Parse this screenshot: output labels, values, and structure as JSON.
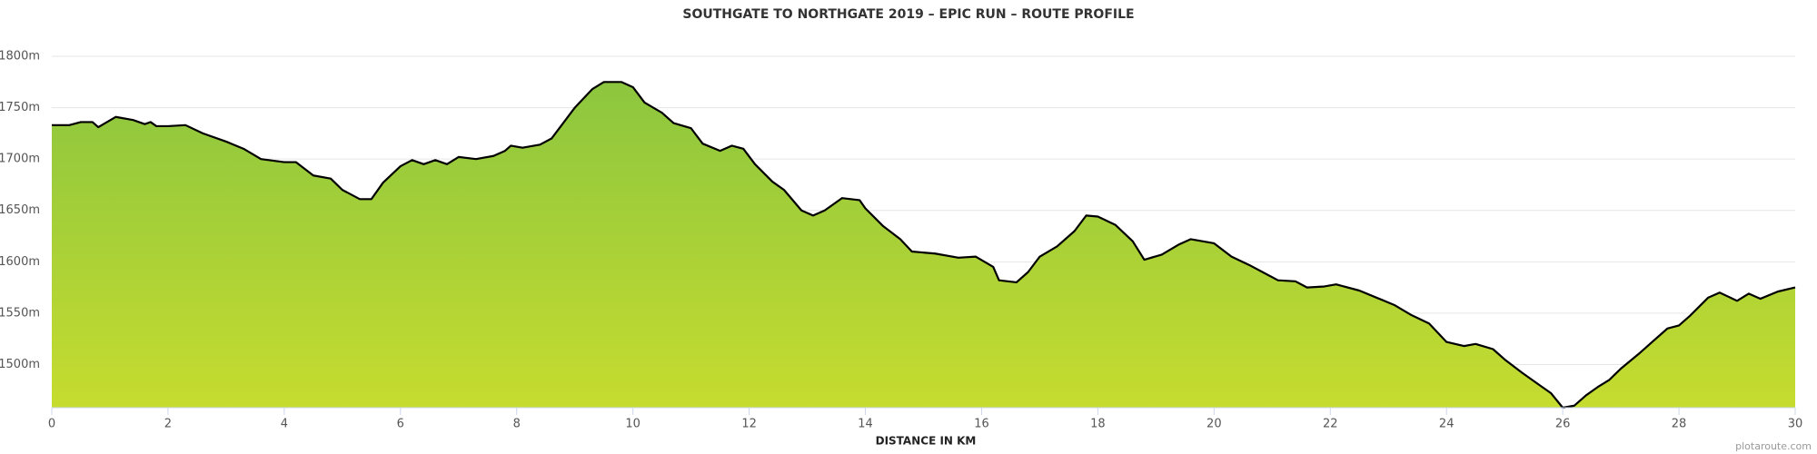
{
  "chart_data": {
    "type": "area",
    "title": "SOUTHGATE TO NORTHGATE 2019 – EPIC RUN – ROUTE PROFILE",
    "x_label": "DISTANCE IN KM",
    "source": "plotaroute.com",
    "x": [
      0,
      0.3,
      0.5,
      0.7,
      0.8,
      1.1,
      1.4,
      1.6,
      1.7,
      1.8,
      2.0,
      2.3,
      2.6,
      3.0,
      3.3,
      3.6,
      4.0,
      4.2,
      4.5,
      4.8,
      5.0,
      5.3,
      5.5,
      5.7,
      6.0,
      6.2,
      6.4,
      6.6,
      6.8,
      7.0,
      7.3,
      7.6,
      7.8,
      7.9,
      8.1,
      8.4,
      8.6,
      8.8,
      9.0,
      9.3,
      9.5,
      9.8,
      10.0,
      10.2,
      10.5,
      10.7,
      11.0,
      11.2,
      11.5,
      11.7,
      11.9,
      12.1,
      12.4,
      12.6,
      12.9,
      13.1,
      13.3,
      13.6,
      13.9,
      14.0,
      14.3,
      14.6,
      14.8,
      15.2,
      15.6,
      15.9,
      16.2,
      16.3,
      16.6,
      16.8,
      17.0,
      17.3,
      17.6,
      17.8,
      18.0,
      18.3,
      18.6,
      18.8,
      19.1,
      19.4,
      19.6,
      20.0,
      20.3,
      20.6,
      20.9,
      21.1,
      21.4,
      21.6,
      21.9,
      22.1,
      22.5,
      22.8,
      23.1,
      23.4,
      23.7,
      24.0,
      24.3,
      24.5,
      24.8,
      25.0,
      25.3,
      25.6,
      25.8,
      26.0,
      26.2,
      26.4,
      26.6,
      26.8,
      27.0,
      27.3,
      27.5,
      27.8,
      28.0,
      28.2,
      28.5,
      28.7,
      29.0,
      29.2,
      29.4,
      29.7,
      30.0
    ],
    "values": [
      1733,
      1733,
      1736,
      1736,
      1731,
      1741,
      1738,
      1734,
      1736,
      1732,
      1732,
      1733,
      1725,
      1717,
      1710,
      1700,
      1697,
      1697,
      1684,
      1681,
      1670,
      1661,
      1661,
      1677,
      1693,
      1699,
      1695,
      1699,
      1695,
      1702,
      1700,
      1703,
      1708,
      1713,
      1711,
      1714,
      1720,
      1735,
      1750,
      1768,
      1775,
      1775,
      1770,
      1755,
      1745,
      1735,
      1730,
      1715,
      1708,
      1713,
      1710,
      1695,
      1678,
      1670,
      1650,
      1645,
      1650,
      1662,
      1660,
      1652,
      1635,
      1622,
      1610,
      1608,
      1604,
      1605,
      1595,
      1582,
      1580,
      1590,
      1605,
      1615,
      1630,
      1645,
      1644,
      1636,
      1620,
      1602,
      1607,
      1617,
      1622,
      1618,
      1605,
      1597,
      1588,
      1582,
      1581,
      1575,
      1576,
      1578,
      1572,
      1565,
      1558,
      1548,
      1540,
      1522,
      1518,
      1520,
      1515,
      1505,
      1492,
      1480,
      1472,
      1458,
      1460,
      1470,
      1478,
      1485,
      1496,
      1510,
      1520,
      1535,
      1538,
      1548,
      1565,
      1570,
      1562,
      1569,
      1564,
      1571,
      1575
    ],
    "xlim": [
      0,
      30
    ],
    "xticks": [
      0,
      2,
      4,
      6,
      8,
      10,
      12,
      14,
      16,
      18,
      20,
      22,
      24,
      26,
      28,
      30
    ],
    "ylim": [
      1458,
      1800
    ],
    "yticks": [
      {
        "value": 1500,
        "label": "1500m"
      },
      {
        "value": 1550,
        "label": "1550m"
      },
      {
        "value": 1600,
        "label": "1600m"
      },
      {
        "value": 1650,
        "label": "1650m"
      },
      {
        "value": 1700,
        "label": "1700m"
      },
      {
        "value": 1750,
        "label": "1750m"
      },
      {
        "value": 1800,
        "label": "1800m"
      }
    ],
    "grid": true,
    "color": "#000000",
    "fill_top": "#8cc63f",
    "fill_bottom": "#c6dc2f"
  }
}
